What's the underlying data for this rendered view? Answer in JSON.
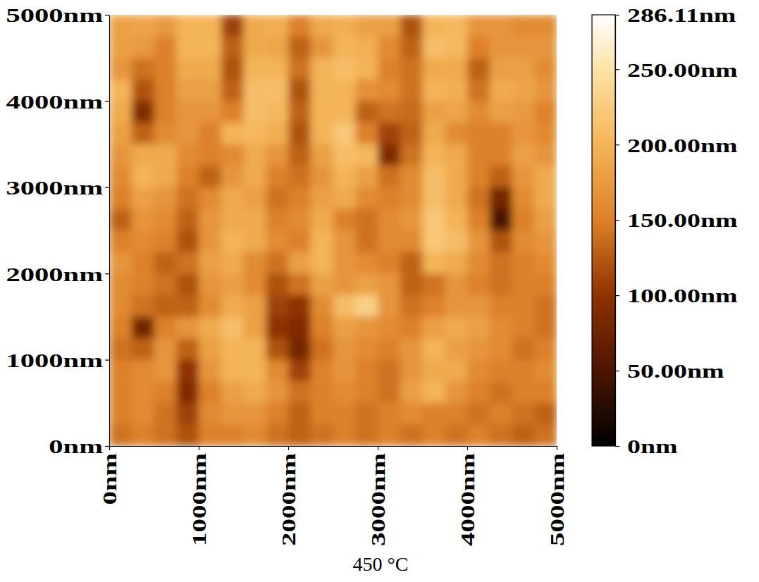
{
  "chart_data": {
    "type": "heatmap",
    "title": "450 °C",
    "x": [
      125,
      375,
      625,
      875,
      1125,
      1375,
      1625,
      1875,
      2125,
      2375,
      2625,
      2875,
      3125,
      3375,
      3625,
      3875,
      4125,
      4375,
      4625,
      4875
    ],
    "y": [
      4875,
      4625,
      4375,
      4125,
      3875,
      3625,
      3375,
      3125,
      2875,
      2625,
      2375,
      2125,
      1875,
      1625,
      1375,
      1125,
      875,
      625,
      375,
      125
    ],
    "z": [
      [
        180,
        185,
        175,
        200,
        200,
        110,
        190,
        195,
        150,
        190,
        195,
        180,
        180,
        120,
        200,
        205,
        170,
        170,
        160,
        160
      ],
      [
        180,
        175,
        150,
        200,
        200,
        130,
        190,
        185,
        130,
        170,
        200,
        195,
        160,
        130,
        210,
        205,
        150,
        170,
        170,
        170
      ],
      [
        170,
        140,
        150,
        190,
        190,
        120,
        200,
        200,
        140,
        200,
        210,
        200,
        150,
        140,
        190,
        190,
        130,
        180,
        180,
        160
      ],
      [
        200,
        120,
        150,
        180,
        180,
        130,
        210,
        210,
        120,
        200,
        200,
        165,
        160,
        140,
        200,
        195,
        140,
        190,
        185,
        170
      ],
      [
        190,
        90,
        150,
        170,
        170,
        150,
        210,
        205,
        130,
        200,
        200,
        130,
        140,
        135,
        180,
        185,
        160,
        180,
        175,
        150
      ],
      [
        180,
        130,
        160,
        170,
        150,
        200,
        205,
        195,
        120,
        200,
        220,
        150,
        110,
        130,
        190,
        160,
        150,
        150,
        170,
        160
      ],
      [
        170,
        190,
        190,
        160,
        150,
        160,
        190,
        170,
        130,
        180,
        210,
        205,
        90,
        140,
        200,
        190,
        150,
        150,
        180,
        170
      ],
      [
        160,
        200,
        190,
        150,
        130,
        170,
        190,
        150,
        140,
        170,
        200,
        180,
        140,
        160,
        210,
        190,
        150,
        130,
        170,
        190
      ],
      [
        150,
        180,
        170,
        140,
        160,
        190,
        180,
        140,
        150,
        180,
        190,
        160,
        150,
        160,
        210,
        190,
        140,
        80,
        160,
        190
      ],
      [
        130,
        170,
        160,
        130,
        170,
        190,
        190,
        150,
        160,
        190,
        150,
        140,
        160,
        170,
        220,
        200,
        150,
        50,
        150,
        180
      ],
      [
        150,
        160,
        150,
        120,
        170,
        200,
        190,
        160,
        150,
        200,
        170,
        140,
        160,
        160,
        220,
        210,
        170,
        120,
        160,
        170
      ],
      [
        170,
        150,
        130,
        140,
        180,
        190,
        160,
        140,
        180,
        200,
        170,
        160,
        150,
        130,
        200,
        190,
        160,
        140,
        150,
        160
      ],
      [
        160,
        150,
        140,
        120,
        170,
        180,
        160,
        120,
        140,
        180,
        170,
        180,
        170,
        130,
        140,
        170,
        150,
        140,
        150,
        150
      ],
      [
        160,
        140,
        130,
        130,
        160,
        190,
        180,
        110,
        100,
        160,
        210,
        230,
        170,
        140,
        150,
        170,
        170,
        150,
        150,
        140
      ],
      [
        150,
        80,
        150,
        170,
        190,
        210,
        180,
        100,
        90,
        150,
        180,
        170,
        160,
        150,
        180,
        190,
        180,
        160,
        150,
        140
      ],
      [
        140,
        130,
        170,
        130,
        180,
        200,
        200,
        120,
        80,
        140,
        170,
        160,
        150,
        170,
        200,
        180,
        170,
        160,
        140,
        150
      ],
      [
        150,
        160,
        170,
        100,
        170,
        200,
        200,
        160,
        110,
        150,
        170,
        150,
        140,
        170,
        190,
        190,
        160,
        150,
        150,
        160
      ],
      [
        150,
        160,
        150,
        90,
        150,
        180,
        190,
        170,
        140,
        150,
        160,
        150,
        140,
        180,
        200,
        170,
        150,
        140,
        150,
        150
      ],
      [
        150,
        160,
        140,
        110,
        160,
        170,
        170,
        150,
        130,
        150,
        150,
        140,
        150,
        160,
        150,
        150,
        140,
        150,
        140,
        130
      ],
      [
        140,
        150,
        140,
        120,
        150,
        150,
        160,
        140,
        130,
        140,
        150,
        140,
        150,
        140,
        150,
        140,
        150,
        140,
        130,
        140
      ]
    ],
    "xlim": [
      0,
      5000
    ],
    "ylim": [
      0,
      5000
    ],
    "xticks": [
      {
        "value": 0,
        "label": "0nm"
      },
      {
        "value": 1000,
        "label": "1000nm"
      },
      {
        "value": 2000,
        "label": "2000nm"
      },
      {
        "value": 3000,
        "label": "3000nm"
      },
      {
        "value": 4000,
        "label": "4000nm"
      },
      {
        "value": 5000,
        "label": "5000nm"
      }
    ],
    "yticks": [
      {
        "value": 0,
        "label": "0nm"
      },
      {
        "value": 1000,
        "label": "1000nm"
      },
      {
        "value": 2000,
        "label": "2000nm"
      },
      {
        "value": 3000,
        "label": "3000nm"
      },
      {
        "value": 4000,
        "label": "4000nm"
      },
      {
        "value": 5000,
        "label": "5000nm"
      }
    ],
    "colorbar_lim": [
      0,
      286.11
    ],
    "colorbar_ticks": [
      {
        "value": 0,
        "label": "0nm"
      },
      {
        "value": 50,
        "label": "50.00nm"
      },
      {
        "value": 100,
        "label": "100.00nm"
      },
      {
        "value": 150,
        "label": "150.00nm"
      },
      {
        "value": 200,
        "label": "200.00nm"
      },
      {
        "value": 250,
        "label": "250.00nm"
      },
      {
        "value": 286.11,
        "label": "286.11nm"
      }
    ]
  }
}
